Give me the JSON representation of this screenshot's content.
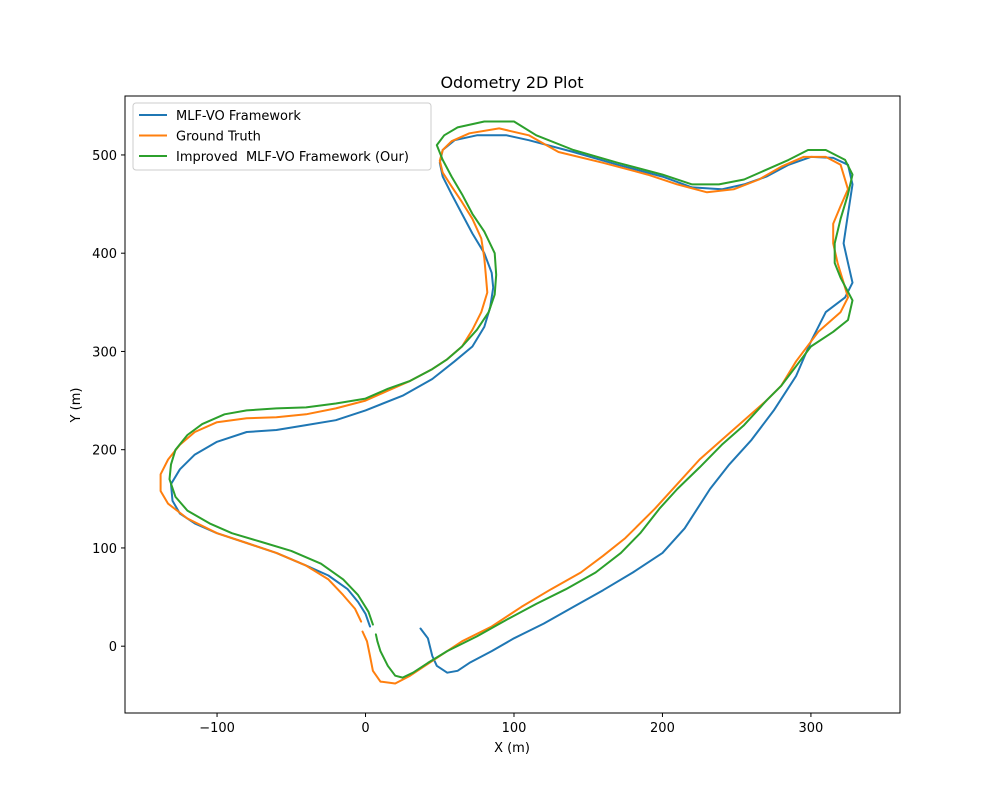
{
  "chart_data": {
    "type": "line",
    "title": "Odometry 2D Plot",
    "xlabel": "X (m)",
    "ylabel": "Y (m)",
    "xlim": [
      -162,
      360
    ],
    "ylim": [
      -68,
      560
    ],
    "xticks": [
      -100,
      0,
      100,
      200,
      300
    ],
    "yticks": [
      0,
      100,
      200,
      300,
      400,
      500
    ],
    "xtick_labels": [
      "−100",
      "0",
      "100",
      "200",
      "300"
    ],
    "ytick_labels": [
      "0",
      "100",
      "200",
      "300",
      "400",
      "500"
    ],
    "grid": false,
    "legend_position": "top-left",
    "series": [
      {
        "name": "MLF-VO Framework",
        "color": "#1f77b4",
        "points": [
          [
            37,
            18
          ],
          [
            42,
            8
          ],
          [
            45,
            -10
          ],
          [
            48,
            -20
          ],
          [
            55,
            -27
          ],
          [
            62,
            -25
          ],
          [
            70,
            -17
          ],
          [
            85,
            -5
          ],
          [
            100,
            8
          ],
          [
            120,
            23
          ],
          [
            140,
            40
          ],
          [
            160,
            57
          ],
          [
            180,
            75
          ],
          [
            200,
            95
          ],
          [
            215,
            120
          ],
          [
            232,
            160
          ],
          [
            245,
            185
          ],
          [
            260,
            210
          ],
          [
            275,
            240
          ],
          [
            290,
            275
          ],
          [
            300,
            310
          ],
          [
            310,
            340
          ],
          [
            323,
            355
          ],
          [
            328,
            370
          ],
          [
            325,
            390
          ],
          [
            322,
            410
          ],
          [
            325,
            440
          ],
          [
            328,
            470
          ],
          [
            325,
            490
          ],
          [
            315,
            497
          ],
          [
            300,
            498
          ],
          [
            285,
            490
          ],
          [
            270,
            478
          ],
          [
            255,
            470
          ],
          [
            240,
            465
          ],
          [
            220,
            467
          ],
          [
            200,
            478
          ],
          [
            170,
            490
          ],
          [
            140,
            503
          ],
          [
            110,
            515
          ],
          [
            95,
            520
          ],
          [
            75,
            520
          ],
          [
            60,
            515
          ],
          [
            52,
            505
          ],
          [
            50,
            492
          ],
          [
            52,
            478
          ],
          [
            58,
            460
          ],
          [
            65,
            440
          ],
          [
            72,
            420
          ],
          [
            80,
            400
          ],
          [
            85,
            380
          ],
          [
            86,
            365
          ],
          [
            84,
            345
          ],
          [
            80,
            325
          ],
          [
            72,
            305
          ],
          [
            60,
            290
          ],
          [
            45,
            272
          ],
          [
            25,
            255
          ],
          [
            0,
            240
          ],
          [
            -20,
            230
          ],
          [
            -40,
            225
          ],
          [
            -60,
            220
          ],
          [
            -80,
            218
          ],
          [
            -100,
            208
          ],
          [
            -115,
            195
          ],
          [
            -125,
            180
          ],
          [
            -131,
            165
          ],
          [
            -130,
            148
          ],
          [
            -125,
            135
          ],
          [
            -115,
            125
          ],
          [
            -100,
            115
          ],
          [
            -80,
            105
          ],
          [
            -60,
            95
          ],
          [
            -40,
            82
          ],
          [
            -25,
            72
          ],
          [
            -12,
            58
          ],
          [
            -5,
            45
          ],
          [
            0,
            33
          ],
          [
            3,
            20
          ]
        ]
      },
      {
        "name": "Ground Truth",
        "color": "#ff7f0e",
        "points": [
          [
            -2,
            15
          ],
          [
            1,
            5
          ],
          [
            3,
            -10
          ],
          [
            5,
            -25
          ],
          [
            10,
            -36
          ],
          [
            20,
            -38
          ],
          [
            30,
            -30
          ],
          [
            45,
            -15
          ],
          [
            65,
            5
          ],
          [
            85,
            20
          ],
          [
            105,
            40
          ],
          [
            125,
            58
          ],
          [
            145,
            75
          ],
          [
            160,
            92
          ],
          [
            175,
            110
          ],
          [
            195,
            140
          ],
          [
            210,
            165
          ],
          [
            225,
            190
          ],
          [
            240,
            210
          ],
          [
            255,
            230
          ],
          [
            270,
            250
          ],
          [
            280,
            265
          ],
          [
            290,
            290
          ],
          [
            305,
            320
          ],
          [
            320,
            340
          ],
          [
            325,
            355
          ],
          [
            322,
            370
          ],
          [
            318,
            390
          ],
          [
            315,
            410
          ],
          [
            315,
            430
          ],
          [
            320,
            448
          ],
          [
            325,
            465
          ],
          [
            320,
            490
          ],
          [
            310,
            498
          ],
          [
            295,
            498
          ],
          [
            280,
            488
          ],
          [
            265,
            475
          ],
          [
            248,
            465
          ],
          [
            230,
            462
          ],
          [
            210,
            470
          ],
          [
            190,
            480
          ],
          [
            160,
            492
          ],
          [
            130,
            503
          ],
          [
            110,
            520
          ],
          [
            90,
            527
          ],
          [
            70,
            522
          ],
          [
            58,
            514
          ],
          [
            52,
            505
          ],
          [
            50,
            494
          ],
          [
            52,
            482
          ],
          [
            58,
            468
          ],
          [
            65,
            452
          ],
          [
            72,
            435
          ],
          [
            78,
            415
          ],
          [
            80,
            395
          ],
          [
            81,
            378
          ],
          [
            82,
            360
          ],
          [
            78,
            340
          ],
          [
            72,
            322
          ],
          [
            65,
            305
          ],
          [
            55,
            292
          ],
          [
            45,
            282
          ],
          [
            30,
            270
          ],
          [
            15,
            260
          ],
          [
            0,
            250
          ],
          [
            -20,
            242
          ],
          [
            -40,
            236
          ],
          [
            -60,
            233
          ],
          [
            -80,
            232
          ],
          [
            -100,
            228
          ],
          [
            -115,
            218
          ],
          [
            -125,
            205
          ],
          [
            -133,
            190
          ],
          [
            -138,
            175
          ],
          [
            -138,
            158
          ],
          [
            -133,
            145
          ],
          [
            -120,
            130
          ],
          [
            -100,
            115
          ],
          [
            -80,
            105
          ],
          [
            -60,
            95
          ],
          [
            -40,
            82
          ],
          [
            -25,
            68
          ],
          [
            -15,
            52
          ],
          [
            -7,
            38
          ],
          [
            -3,
            25
          ]
        ]
      },
      {
        "name": "Improved  MLF-VO Framework (Our)",
        "color": "#2ca02c",
        "points": [
          [
            7,
            12
          ],
          [
            8,
            5
          ],
          [
            10,
            -5
          ],
          [
            15,
            -20
          ],
          [
            20,
            -30
          ],
          [
            25,
            -32
          ],
          [
            32,
            -27
          ],
          [
            42,
            -17
          ],
          [
            55,
            -5
          ],
          [
            75,
            10
          ],
          [
            95,
            27
          ],
          [
            115,
            43
          ],
          [
            135,
            58
          ],
          [
            155,
            75
          ],
          [
            172,
            95
          ],
          [
            185,
            115
          ],
          [
            198,
            140
          ],
          [
            210,
            160
          ],
          [
            225,
            182
          ],
          [
            240,
            205
          ],
          [
            255,
            225
          ],
          [
            270,
            250
          ],
          [
            280,
            265
          ],
          [
            290,
            285
          ],
          [
            300,
            305
          ],
          [
            315,
            320
          ],
          [
            325,
            332
          ],
          [
            328,
            352
          ],
          [
            320,
            375
          ],
          [
            316,
            390
          ],
          [
            316,
            410
          ],
          [
            320,
            435
          ],
          [
            325,
            460
          ],
          [
            328,
            480
          ],
          [
            323,
            495
          ],
          [
            310,
            505
          ],
          [
            298,
            505
          ],
          [
            285,
            495
          ],
          [
            270,
            485
          ],
          [
            255,
            475
          ],
          [
            238,
            470
          ],
          [
            220,
            470
          ],
          [
            200,
            480
          ],
          [
            170,
            492
          ],
          [
            140,
            505
          ],
          [
            115,
            520
          ],
          [
            100,
            534
          ],
          [
            80,
            534
          ],
          [
            62,
            528
          ],
          [
            53,
            520
          ],
          [
            48,
            510
          ],
          [
            52,
            495
          ],
          [
            58,
            478
          ],
          [
            65,
            460
          ],
          [
            72,
            440
          ],
          [
            80,
            422
          ],
          [
            87,
            400
          ],
          [
            88,
            378
          ],
          [
            87,
            358
          ],
          [
            83,
            340
          ],
          [
            75,
            322
          ],
          [
            65,
            305
          ],
          [
            55,
            292
          ],
          [
            45,
            282
          ],
          [
            30,
            270
          ],
          [
            15,
            262
          ],
          [
            0,
            252
          ],
          [
            -20,
            247
          ],
          [
            -40,
            243
          ],
          [
            -60,
            242
          ],
          [
            -80,
            240
          ],
          [
            -95,
            236
          ],
          [
            -110,
            226
          ],
          [
            -120,
            215
          ],
          [
            -128,
            200
          ],
          [
            -131,
            185
          ],
          [
            -132,
            170
          ],
          [
            -128,
            152
          ],
          [
            -120,
            138
          ],
          [
            -105,
            125
          ],
          [
            -90,
            115
          ],
          [
            -70,
            106
          ],
          [
            -50,
            97
          ],
          [
            -30,
            84
          ],
          [
            -15,
            68
          ],
          [
            -5,
            52
          ],
          [
            2,
            35
          ],
          [
            5,
            22
          ]
        ]
      }
    ]
  }
}
